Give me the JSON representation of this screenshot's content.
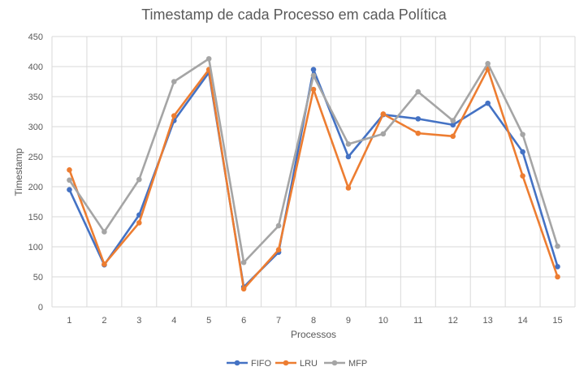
{
  "chart_data": {
    "type": "line",
    "title": "Timestamp de cada Processo em cada Política",
    "xlabel": "Processos",
    "ylabel": "Timestamp",
    "categories": [
      "1",
      "2",
      "3",
      "4",
      "5",
      "6",
      "7",
      "8",
      "9",
      "10",
      "11",
      "12",
      "13",
      "14",
      "15"
    ],
    "ylim": [
      0,
      450
    ],
    "yticks": [
      0,
      50,
      100,
      150,
      200,
      250,
      300,
      350,
      400,
      450
    ],
    "grid": true,
    "legend_position": "bottom",
    "series": [
      {
        "name": "FIFO",
        "color": "#4472C4",
        "values": [
          195,
          70,
          153,
          310,
          390,
          33,
          91,
          395,
          250,
          320,
          313,
          303,
          339,
          258,
          67
        ]
      },
      {
        "name": "LRU",
        "color": "#ED7D31",
        "values": [
          228,
          71,
          140,
          318,
          395,
          30,
          95,
          362,
          198,
          321,
          289,
          284,
          396,
          218,
          50
        ]
      },
      {
        "name": "MFP",
        "color": "#A5A5A5",
        "values": [
          211,
          125,
          212,
          375,
          413,
          74,
          135,
          385,
          271,
          288,
          358,
          310,
          405,
          287,
          101
        ]
      }
    ]
  }
}
